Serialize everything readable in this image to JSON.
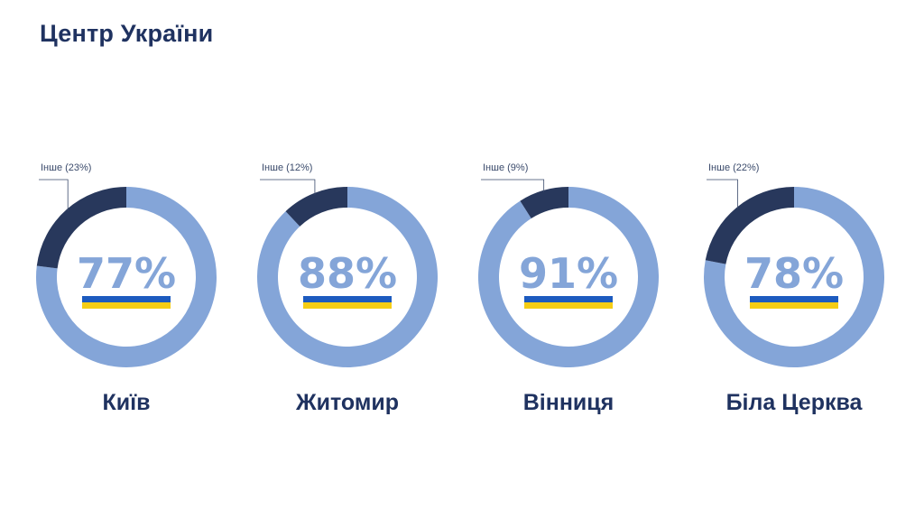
{
  "page": {
    "title": "Центр України"
  },
  "colors": {
    "title": "#1f3260",
    "main_share": "#84a5d8",
    "other_share": "#28385c",
    "percent_text": "#84a5d8",
    "callout": "#3a4a6b",
    "flag_blue": "#1d5bbf",
    "flag_yellow": "#f5cd15"
  },
  "chart_data": [
    {
      "type": "pie",
      "style": "donut",
      "city": "Київ",
      "percent_label": "77%",
      "slices": [
        {
          "share": 77
        },
        {
          "label": "Інше (23%)",
          "share": 23
        }
      ]
    },
    {
      "type": "pie",
      "style": "donut",
      "city": "Житомир",
      "percent_label": "88%",
      "slices": [
        {
          "share": 88
        },
        {
          "label": "Інше (12%)",
          "share": 12
        }
      ]
    },
    {
      "type": "pie",
      "style": "donut",
      "city": "Вінниця",
      "percent_label": "91%",
      "slices": [
        {
          "share": 91
        },
        {
          "label": "Інше (9%)",
          "share": 9
        }
      ]
    },
    {
      "type": "pie",
      "style": "donut",
      "city": "Біла Церква",
      "percent_label": "78%",
      "slices": [
        {
          "share": 78
        },
        {
          "label": "Інше (22%)",
          "share": 22
        }
      ]
    }
  ]
}
